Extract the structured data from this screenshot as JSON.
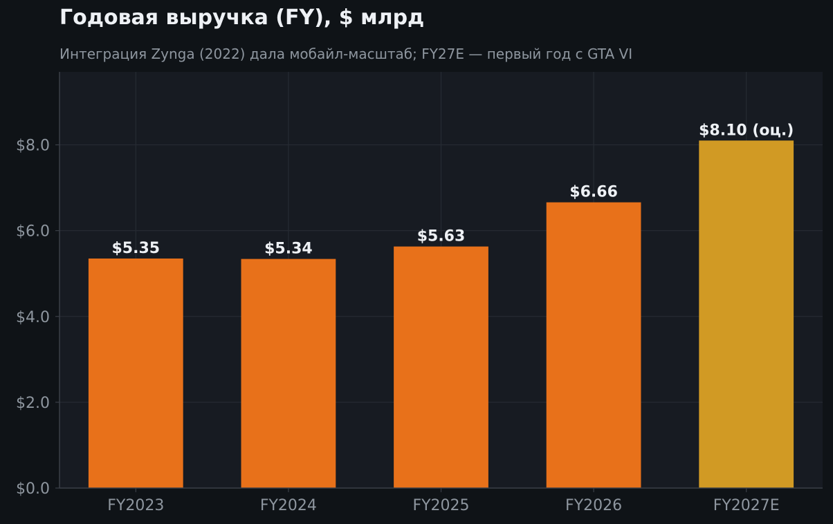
{
  "chart_data": {
    "type": "bar",
    "title": "Годовая выручка (FY), $ млрд",
    "subtitle": "Интеграция Zynga (2022) дала мобайл-масштаб; FY27E — первый год с GTA VI",
    "xlabel": "",
    "ylabel": "",
    "categories": [
      "FY2023",
      "FY2024",
      "FY2025",
      "FY2026",
      "FY2027E"
    ],
    "values": [
      5.35,
      5.34,
      5.63,
      6.66,
      8.1
    ],
    "data_labels": [
      "$5.35",
      "$5.34",
      "$5.63",
      "$6.66",
      "$8.10 (оц.)"
    ],
    "bar_colors": [
      "#e8711a",
      "#e8711a",
      "#e8711a",
      "#e8711a",
      "#d19a24"
    ],
    "yticks": [
      0,
      2,
      4,
      6,
      8
    ],
    "ytick_labels": [
      "$0.0",
      "$2.0",
      "$4.0",
      "$6.0",
      "$8.0"
    ],
    "ylim": [
      0,
      9.7
    ],
    "grid": true,
    "colors": {
      "background": "#0f1317",
      "plot_background": "#171b22",
      "grid": "#262b33",
      "axis": "#3a3f47",
      "title": "#eef1f5",
      "subtitle": "#8e969f",
      "tick_label": "#8e969f",
      "data_label": "#eef1f5",
      "actual_bar": "#e8711a",
      "estimate_bar": "#d19a24"
    }
  }
}
